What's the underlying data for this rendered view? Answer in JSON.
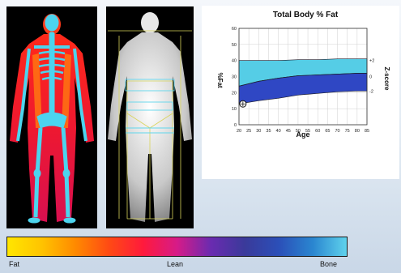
{
  "chart_data": {
    "type": "area",
    "title": "Total Body % Fat",
    "xlabel": "Age",
    "ylabel": "%Fat",
    "y2label": "Z-score",
    "xlim": [
      20,
      85
    ],
    "ylim": [
      0,
      60
    ],
    "x_ticks": [
      20,
      25,
      30,
      35,
      40,
      45,
      50,
      55,
      60,
      65,
      70,
      75,
      80,
      85
    ],
    "y_ticks": [
      0,
      10,
      20,
      30,
      40,
      50,
      60
    ],
    "z_ticks": [
      {
        "label": "+2",
        "y": 40
      },
      {
        "label": "0",
        "y": 30
      },
      {
        "label": "-2",
        "y": 21
      }
    ],
    "bands": [
      {
        "color": "#55cde6",
        "x": [
          20,
          30,
          40,
          50,
          60,
          70,
          80,
          85
        ],
        "lower": [
          24,
          27,
          29,
          30.5,
          31,
          31.5,
          32,
          32
        ],
        "upper": [
          40,
          40,
          40,
          40.5,
          40.5,
          41,
          41,
          41
        ]
      },
      {
        "color": "#2f47c4",
        "x": [
          20,
          30,
          40,
          50,
          60,
          70,
          80,
          85
        ],
        "lower": [
          13,
          15,
          16.5,
          18.5,
          19.5,
          20.5,
          21,
          21
        ],
        "upper": [
          24,
          27,
          29,
          30.5,
          31,
          31.5,
          32,
          32
        ]
      }
    ],
    "points": [
      {
        "x": 22,
        "y": 13
      }
    ]
  },
  "colorbar": {
    "fat_label": "Fat",
    "lean_label": "Lean",
    "bone_label": "Bone"
  }
}
